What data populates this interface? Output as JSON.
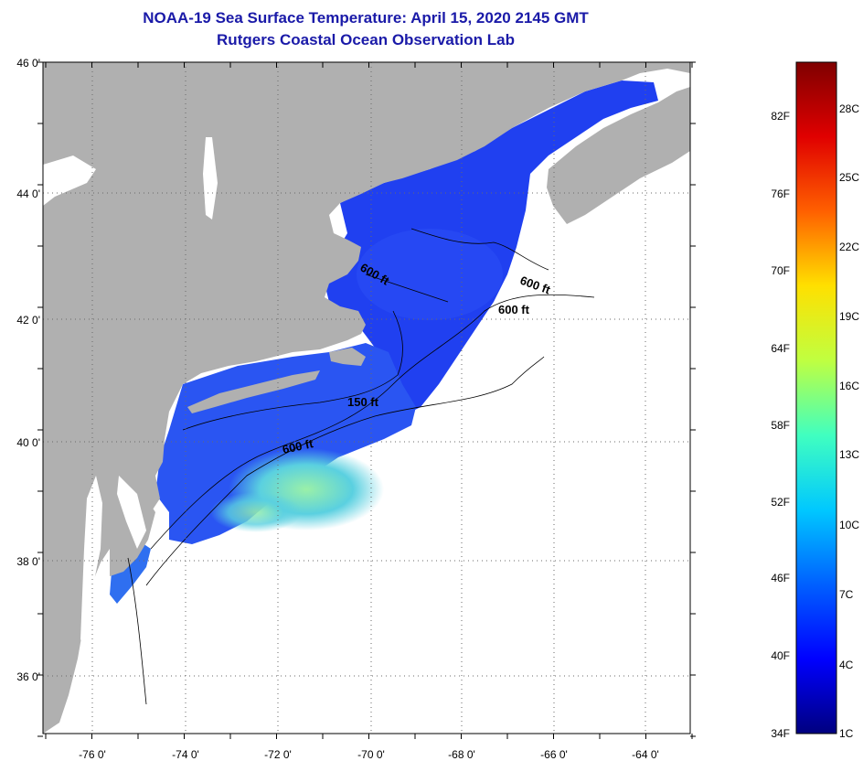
{
  "title": "NOAA-19 Sea Surface Temperature:  April 15, 2020 2145 GMT",
  "subtitle": "Rutgers Coastal Ocean Observation Lab",
  "lat_labels": [
    "46 0'",
    "44 0'",
    "42 0'",
    "40 0'",
    "38 0'",
    "36 0'"
  ],
  "lon_labels": [
    "-76 0'",
    "-74 0'",
    "-72 0'",
    "-70 0'",
    "-68 0'",
    "-66 0'",
    "-64 0'"
  ],
  "contour_labels": [
    "600 ft",
    "600 ft",
    "600 ft",
    "150 ft",
    "600 ft"
  ],
  "colorbar": {
    "fahrenheit": [
      "82F",
      "76F",
      "70F",
      "64F",
      "58F",
      "52F",
      "46F",
      "40F",
      "34F"
    ],
    "celsius": [
      "28C",
      "25C",
      "22C",
      "19C",
      "16C",
      "13C",
      "10C",
      "7C",
      "4C",
      "1C"
    ],
    "stops": [
      "#00007f",
      "#0000ff",
      "#0060ff",
      "#00c8ff",
      "#40ffc0",
      "#c0ff40",
      "#ffe000",
      "#ff6000",
      "#e00000",
      "#7f0000"
    ]
  },
  "colors": {
    "land": "#b0b0b0",
    "ocean_no_data": "#ffffff",
    "sst_cold": "#1e3cf0",
    "sst_warm": "#70e0c0",
    "title": "#1a1aa8"
  }
}
